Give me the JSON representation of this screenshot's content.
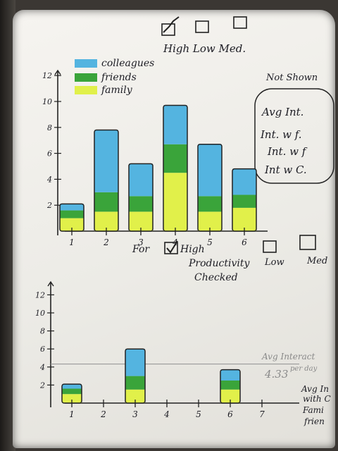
{
  "top_controls": {
    "label": "High Low Med.",
    "checkboxes": [
      {
        "name": "High",
        "checked": true
      },
      {
        "name": "Low",
        "checked": false
      },
      {
        "name": "Med.",
        "checked": false
      }
    ]
  },
  "side_note": {
    "title": "Not Shown",
    "lines": [
      "Avg Int.",
      "Int. w f.",
      "Int. w f",
      "Int w C."
    ]
  },
  "legend": [
    "colleagues",
    "friends",
    "family"
  ],
  "colors": {
    "colleagues": "#54b4e0",
    "friends": "#3aa43a",
    "family": "#e1f04a"
  },
  "middle_controls": {
    "prefix": "For",
    "check_label_1": "High",
    "check_label_2": "Productivity",
    "check_label_3": "Checked",
    "low": "Low",
    "med": "Med"
  },
  "bottom_annotations": {
    "avg_label": "Avg Interact",
    "avg_value": "4.33",
    "avg_suffix": "per day",
    "right_label": [
      "Avg In",
      "with C",
      "Fami",
      "frien"
    ]
  },
  "chart_data": [
    {
      "type": "bar",
      "stacked": true,
      "categories": [
        "1",
        "2",
        "3",
        "4",
        "5",
        "6"
      ],
      "series": [
        {
          "name": "family",
          "values": [
            1,
            1.5,
            1.5,
            4.5,
            1.5,
            1.8
          ]
        },
        {
          "name": "friends",
          "values": [
            0.6,
            1.5,
            1.2,
            2.2,
            1.2,
            1
          ]
        },
        {
          "name": "colleagues",
          "values": [
            0.5,
            4.8,
            2.5,
            3,
            4,
            2
          ]
        }
      ],
      "yticks": [
        2,
        4,
        6,
        8,
        10,
        12
      ],
      "ylim": [
        0,
        13
      ]
    },
    {
      "type": "bar",
      "stacked": true,
      "categories": [
        "1",
        "2",
        "3",
        "4",
        "5",
        "6",
        "7"
      ],
      "series": [
        {
          "name": "family",
          "values": [
            1,
            0,
            1.5,
            0,
            0,
            1.5,
            0
          ]
        },
        {
          "name": "friends",
          "values": [
            0.6,
            0,
            1.5,
            0,
            0,
            1,
            0
          ]
        },
        {
          "name": "colleagues",
          "values": [
            0.5,
            0,
            3,
            0,
            0,
            1.2,
            0
          ]
        }
      ],
      "yticks": [
        2,
        4,
        6,
        8,
        10,
        12
      ],
      "ylim": [
        0,
        13
      ],
      "reference_lines": [
        4.33
      ]
    }
  ]
}
